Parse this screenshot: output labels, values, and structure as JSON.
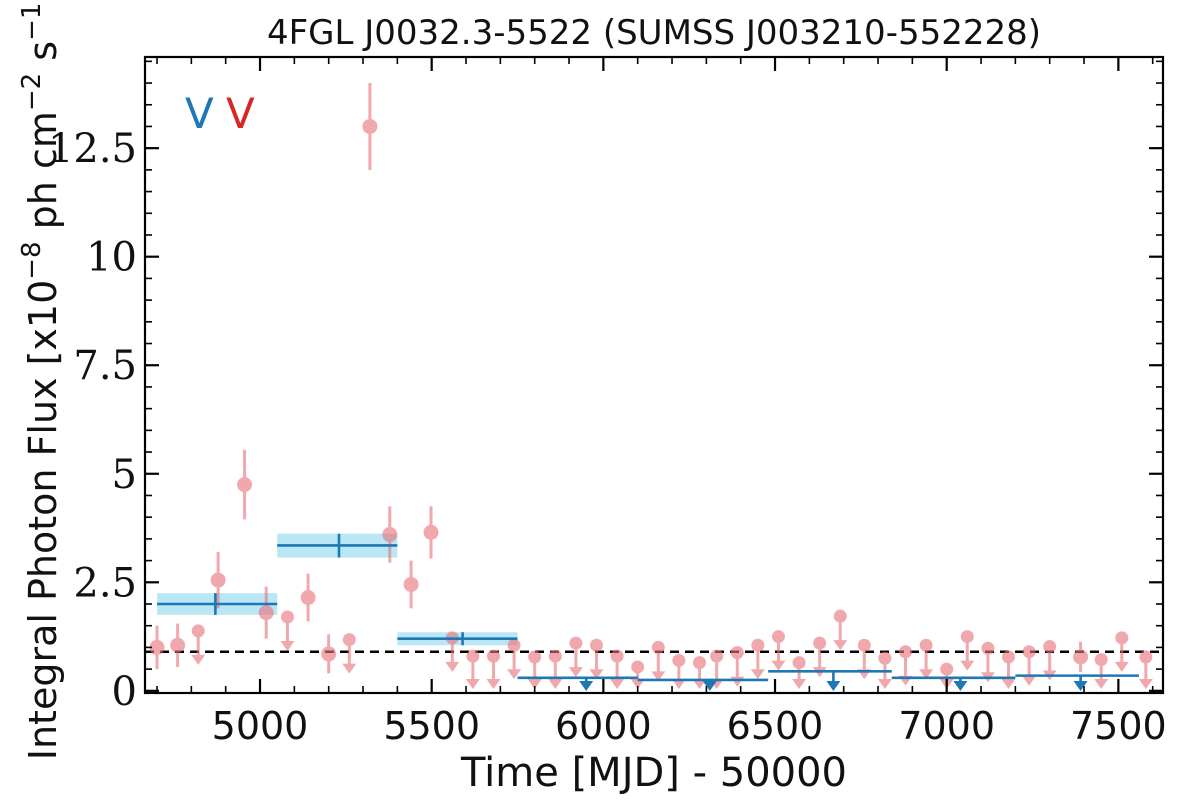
{
  "chart_data": {
    "type": "scatter",
    "title": "4FGL J0032.3-5522 (SUMSS J003210-552228)",
    "xlabel": "Time [MJD] - 50000",
    "ylabel": "Integral Photon Flux [x10",
    "ylabel_exp": "−8",
    "ylabel_mid": " ph cm",
    "ylabel_exp2": "−2",
    "ylabel_end": " s",
    "ylabel_exp3": "−1",
    "ylabel_close": "]",
    "xlim": [
      4665,
      7630
    ],
    "ylim": [
      -0.05,
      14.6
    ],
    "x_ticks": [
      {
        "value": 5000,
        "label": "5000"
      },
      {
        "value": 5500,
        "label": "5500"
      },
      {
        "value": 6000,
        "label": "6000"
      },
      {
        "value": 6500,
        "label": "6500"
      },
      {
        "value": 7000,
        "label": "7000"
      },
      {
        "value": 7500,
        "label": "7500"
      }
    ],
    "y_ticks": [
      {
        "value": 0,
        "label": "0"
      },
      {
        "value": 2.5,
        "label": "2.5"
      },
      {
        "value": 5,
        "label": "5"
      },
      {
        "value": 7.5,
        "label": "7.5"
      },
      {
        "value": 10,
        "label": "10"
      },
      {
        "value": 12.5,
        "label": "12.5"
      }
    ],
    "reference_line": {
      "y": 0.9,
      "style": "dashed",
      "color": "#000000"
    },
    "markers": [
      {
        "label": "V",
        "color": "#1f77b4"
      },
      {
        "label": "V",
        "color": "#d62728"
      }
    ],
    "colors": {
      "short_bins": "#e8737a",
      "long_bins": "#1f77b4",
      "long_band": "#aee3f5"
    },
    "short_bins": {
      "detections": [
        {
          "x": 4700,
          "y": 1.0,
          "yerr": 0.5
        },
        {
          "x": 4760,
          "y": 1.05,
          "yerr": 0.5
        },
        {
          "x": 4878,
          "y": 2.55,
          "yerr": 0.65
        },
        {
          "x": 4955,
          "y": 4.75,
          "yerr": 0.8
        },
        {
          "x": 5018,
          "y": 1.8,
          "yerr": 0.6
        },
        {
          "x": 5140,
          "y": 2.15,
          "yerr": 0.55
        },
        {
          "x": 5200,
          "y": 0.85,
          "yerr": 0.45
        },
        {
          "x": 5320,
          "y": 13.0,
          "yerr": 1.0
        },
        {
          "x": 5378,
          "y": 3.6,
          "yerr": 0.65
        },
        {
          "x": 5440,
          "y": 2.45,
          "yerr": 0.55
        },
        {
          "x": 5498,
          "y": 3.65,
          "yerr": 0.6
        },
        {
          "x": 7390,
          "y": 0.78,
          "yerr": 0.35
        }
      ],
      "upper_limits": [
        {
          "x": 4820,
          "y": 1.38
        },
        {
          "x": 5080,
          "y": 1.7
        },
        {
          "x": 5260,
          "y": 1.18
        },
        {
          "x": 5560,
          "y": 1.22
        },
        {
          "x": 5620,
          "y": 0.8
        },
        {
          "x": 5680,
          "y": 0.8
        },
        {
          "x": 5740,
          "y": 1.05
        },
        {
          "x": 5800,
          "y": 0.78
        },
        {
          "x": 5860,
          "y": 0.8
        },
        {
          "x": 5920,
          "y": 1.1
        },
        {
          "x": 5980,
          "y": 1.05
        },
        {
          "x": 6040,
          "y": 0.8
        },
        {
          "x": 6100,
          "y": 0.55
        },
        {
          "x": 6160,
          "y": 1.0
        },
        {
          "x": 6220,
          "y": 0.7
        },
        {
          "x": 6280,
          "y": 0.65
        },
        {
          "x": 6330,
          "y": 0.8
        },
        {
          "x": 6390,
          "y": 0.88
        },
        {
          "x": 6450,
          "y": 1.05
        },
        {
          "x": 6510,
          "y": 1.25
        },
        {
          "x": 6570,
          "y": 0.65
        },
        {
          "x": 6630,
          "y": 1.1
        },
        {
          "x": 6690,
          "y": 1.72
        },
        {
          "x": 6760,
          "y": 1.05
        },
        {
          "x": 6820,
          "y": 0.75
        },
        {
          "x": 6880,
          "y": 0.9
        },
        {
          "x": 6940,
          "y": 1.05
        },
        {
          "x": 7000,
          "y": 0.5
        },
        {
          "x": 7060,
          "y": 1.25
        },
        {
          "x": 7120,
          "y": 0.98
        },
        {
          "x": 7180,
          "y": 0.78
        },
        {
          "x": 7240,
          "y": 0.9
        },
        {
          "x": 7300,
          "y": 1.02
        },
        {
          "x": 7450,
          "y": 0.72
        },
        {
          "x": 7510,
          "y": 1.22
        },
        {
          "x": 7580,
          "y": 0.78
        }
      ]
    },
    "long_bins": {
      "detections": [
        {
          "x_start": 4700,
          "x_end": 5050,
          "x_mid": 4870,
          "y": 2.0,
          "band_low": 1.75,
          "band_high": 2.25
        },
        {
          "x_start": 5050,
          "x_end": 5400,
          "x_mid": 5230,
          "y": 3.35,
          "band_low": 3.07,
          "band_high": 3.62
        },
        {
          "x_start": 5400,
          "x_end": 5750,
          "x_mid": 5590,
          "y": 1.2,
          "band_low": 1.05,
          "band_high": 1.35
        }
      ],
      "upper_limits": [
        {
          "x_start": 5750,
          "x_end": 6100,
          "x_mid": 5950,
          "y": 0.3
        },
        {
          "x_start": 6100,
          "x_end": 6480,
          "x_mid": 6310,
          "y": 0.25
        },
        {
          "x_start": 6480,
          "x_end": 6840,
          "x_mid": 6670,
          "y": 0.45
        },
        {
          "x_start": 6840,
          "x_end": 7200,
          "x_mid": 7040,
          "y": 0.3
        },
        {
          "x_start": 7200,
          "x_end": 7560,
          "x_mid": 7390,
          "y": 0.35
        }
      ]
    }
  }
}
